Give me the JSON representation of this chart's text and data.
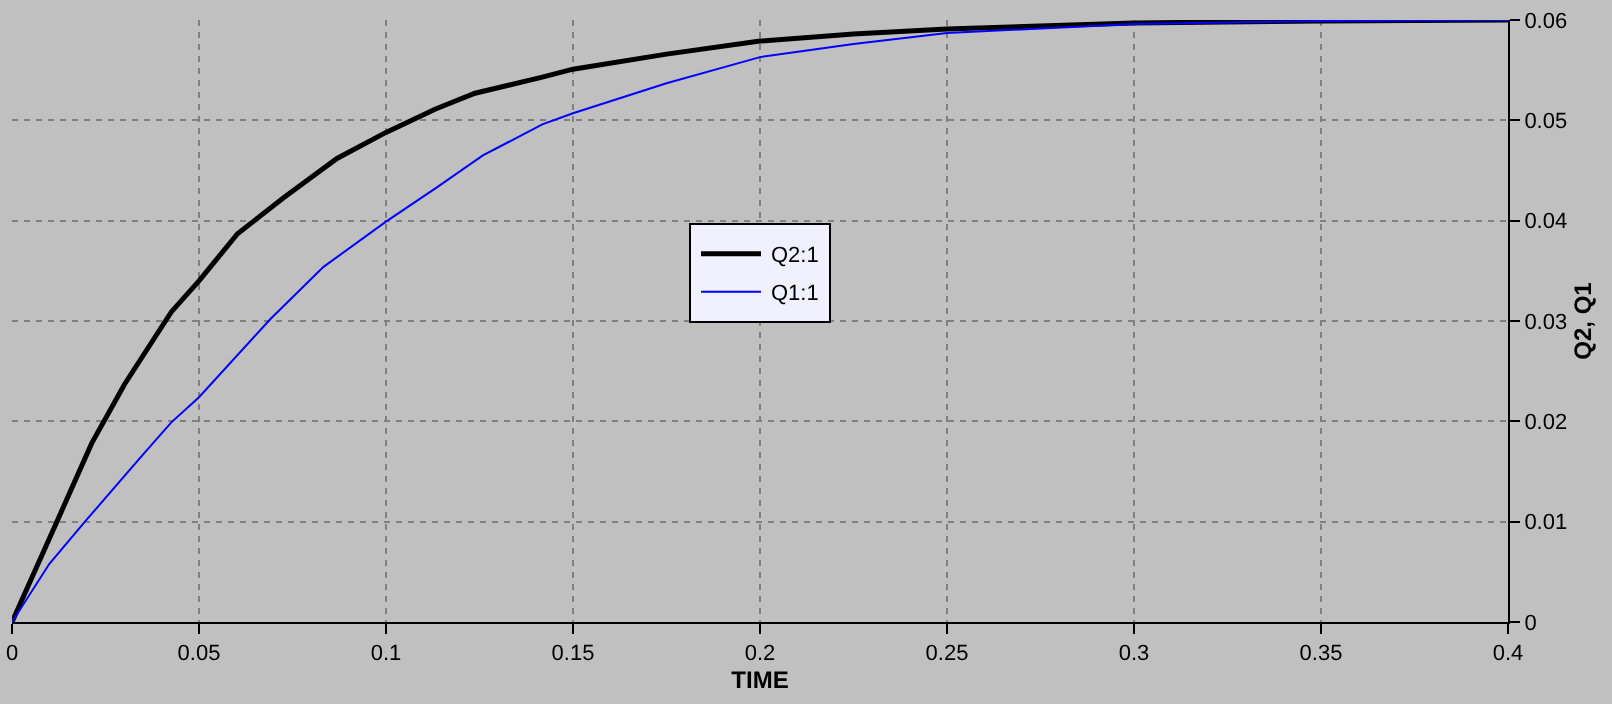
{
  "chart_data": {
    "type": "line",
    "xlabel": "TIME",
    "ylabel": "Q2, Q1",
    "xlim": [
      0,
      0.4
    ],
    "ylim": [
      0,
      0.06
    ],
    "xticks": [
      0,
      0.05,
      0.1,
      0.15,
      0.2,
      0.25,
      0.3,
      0.35,
      0.4
    ],
    "yticks": [
      0,
      0.01,
      0.02,
      0.03,
      0.04,
      0.05,
      0.06
    ],
    "x": [
      0,
      0.012,
      0.0213,
      0.0301,
      0.0426,
      0.05,
      0.0603,
      0.0727,
      0.0869,
      0.1,
      0.1131,
      0.1238,
      0.1418,
      0.15,
      0.175,
      0.2,
      0.225,
      0.25,
      0.3,
      0.35,
      0.4
    ],
    "series": [
      {
        "name": "Q2:1",
        "color": "#000000",
        "values": [
          0,
          0.01,
          0.0178,
          0.0237,
          0.0309,
          0.034,
          0.0387,
          0.0423,
          0.0462,
          0.0488,
          0.0511,
          0.0527,
          0.0543,
          0.0551,
          0.0566,
          0.0579,
          0.0586,
          0.0591,
          0.0597,
          0.0599,
          0.06
        ]
      },
      {
        "name": "Q1:1",
        "color": "#0000ff",
        "x": [
          0,
          0.01,
          0.0195,
          0.0346,
          0.0426,
          0.05,
          0.0691,
          0.0833,
          0.1,
          0.1135,
          0.1259,
          0.1418,
          0.15,
          0.175,
          0.2,
          0.225,
          0.25,
          0.3,
          0.35,
          0.4
        ],
        "values": [
          0,
          0.0058,
          0.01,
          0.0165,
          0.0199,
          0.0224,
          0.0302,
          0.0354,
          0.0399,
          0.0433,
          0.0465,
          0.0496,
          0.0507,
          0.0537,
          0.0563,
          0.0576,
          0.0587,
          0.0596,
          0.0599,
          0.06
        ]
      }
    ],
    "grid": true,
    "legend": "center",
    "line_style": "solid"
  }
}
